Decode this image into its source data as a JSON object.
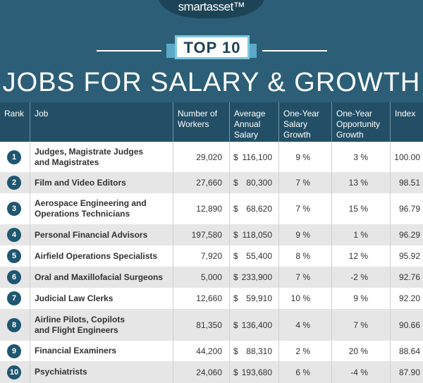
{
  "logo": "smartasset™",
  "badge": "TOP 10",
  "title": "JOBS FOR SALARY & GROWTH",
  "table": {
    "columns": [
      "Rank",
      "Job",
      "Number of\nWorkers",
      "Average\nAnnual\nSalary",
      "One-Year\nSalary\nGrowth",
      "One-Year\nOpportunity\nGrowth",
      "Index"
    ],
    "rows": [
      [
        "1",
        "Judges, Magistrate Judges\nand Magistrates",
        "29,020",
        "$",
        "116,100",
        "9 %",
        "3 %",
        "100.00"
      ],
      [
        "2",
        "Film and Video Editors",
        "27,660",
        "$",
        "80,300",
        "7 %",
        "13 %",
        "98.51"
      ],
      [
        "3",
        "Aerospace Engineering and\nOperations Technicians",
        "12,890",
        "$",
        "68,620",
        "7 %",
        "15 %",
        "96.79"
      ],
      [
        "4",
        "Personal Financial Advisors",
        "197,580",
        "$",
        "118,050",
        "9 %",
        "1 %",
        "96.29"
      ],
      [
        "5",
        "Airfield Operations Specialists",
        "7,920",
        "$",
        "55,400",
        "8 %",
        "12 %",
        "95.92"
      ],
      [
        "6",
        "Oral and Maxillofacial Surgeons",
        "5,000",
        "$",
        "233,900",
        "7 %",
        "-2 %",
        "92.76"
      ],
      [
        "7",
        "Judicial Law Clerks",
        "12,660",
        "$",
        "59,910",
        "10 %",
        "9 %",
        "92.20"
      ],
      [
        "8",
        "Airline Pilots, Copilots\nand Flight Engineers",
        "81,350",
        "$",
        "136,400",
        "4 %",
        "7 %",
        "90.66"
      ],
      [
        "9",
        "Financial Examiners",
        "44,200",
        "$",
        "88,310",
        "2 %",
        "20 %",
        "88.64"
      ],
      [
        "10",
        "Psychiatrists",
        "24,060",
        "$",
        "193,680",
        "6 %",
        "-4 %",
        "87.90"
      ]
    ]
  }
}
